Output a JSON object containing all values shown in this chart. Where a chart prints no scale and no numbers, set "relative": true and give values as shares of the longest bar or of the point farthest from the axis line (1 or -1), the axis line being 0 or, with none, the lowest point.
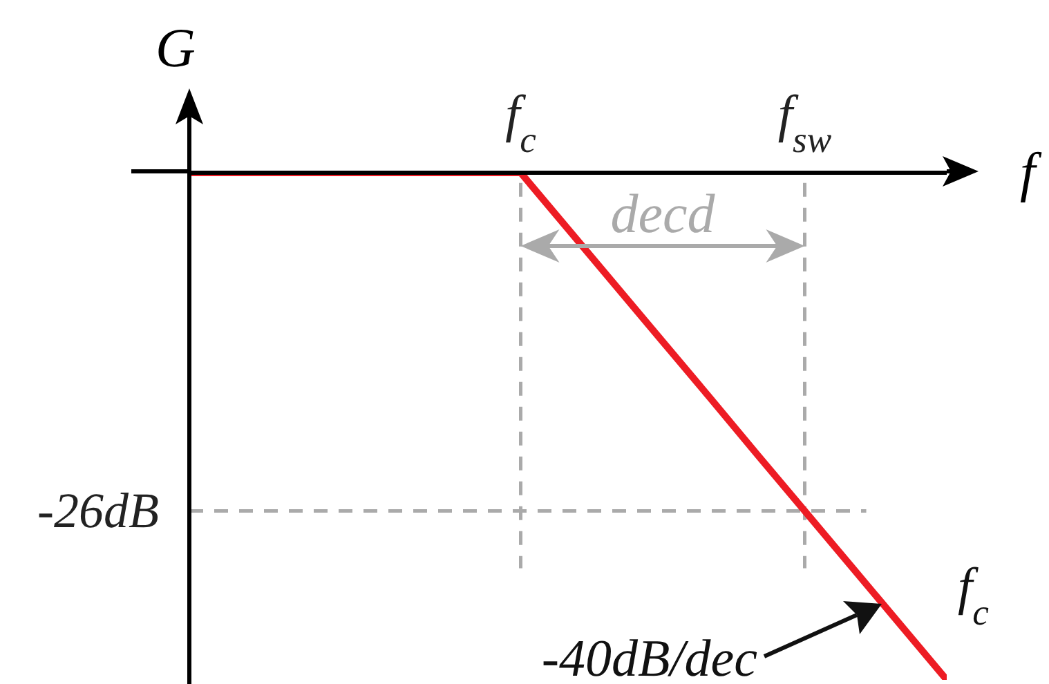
{
  "chart_data": {
    "type": "line",
    "relative": true,
    "xlabel": "f",
    "ylabel": "G",
    "tick_labels": "x",
    "grid": false,
    "legend": false,
    "marker": "none",
    "line_style": "solid",
    "categories": [
      null,
      null,
      null,
      null,
      null,
      null,
      null,
      "f$_{c}$",
      null,
      null,
      null,
      null,
      null,
      "f$_{sw}$",
      null,
      null,
      null
    ],
    "series": [
      {
        "color": "#ed1c24",
        "values": [
          0,
          0,
          0,
          0,
          0,
          0,
          0,
          0,
          -0.111,
          -0.222,
          -0.333,
          -0.444,
          -0.556,
          -0.667,
          -0.778,
          -0.889,
          -1
        ]
      }
    ],
    "ref_lines": [
      {
        "axis": "x",
        "value": "f$_{c}$",
        "color": "#aaaaaa",
        "line_style": "dashed"
      },
      {
        "axis": "x",
        "value": "f$_{sw}$",
        "color": "#aaaaaa",
        "line_style": "dashed"
      },
      {
        "axis": "y",
        "value": -0.667,
        "label": "-26dB",
        "color": "#aaaaaa",
        "line_style": "dashed"
      }
    ],
    "annotations": [
      "decd",
      "-40dB/dec",
      "f$_{c}$"
    ]
  }
}
